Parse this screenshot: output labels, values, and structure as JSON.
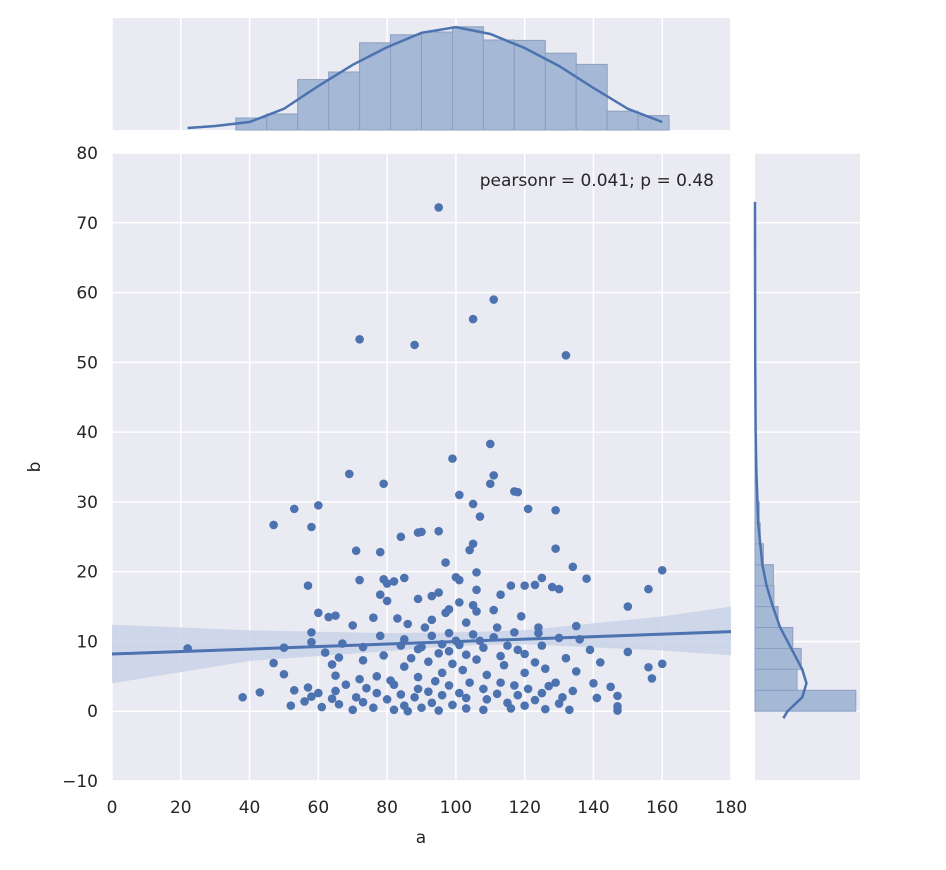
{
  "chart_data": {
    "type": "scatter",
    "subtype": "jointplot",
    "xlabel": "a",
    "ylabel": "b",
    "xlim": [
      0,
      180
    ],
    "ylim": [
      -10,
      80
    ],
    "xticks": [
      0,
      20,
      40,
      60,
      80,
      100,
      120,
      140,
      160,
      180
    ],
    "yticks": [
      -10,
      0,
      10,
      20,
      30,
      40,
      50,
      60,
      70,
      80
    ],
    "annotation": "pearsonr = 0.041; p = 0.48",
    "grid": true,
    "colors": {
      "background": "#eaeaf2",
      "grid": "#ffffff",
      "points": "#4c72b0",
      "hist_fill": "#a5b8d6",
      "hist_edge": "#8c9fc0",
      "ci_band": "#c9d4e8"
    },
    "points": [
      [
        95,
        72.2
      ],
      [
        111,
        59
      ],
      [
        105,
        56.2
      ],
      [
        72,
        53.3
      ],
      [
        88,
        52.5
      ],
      [
        132,
        51
      ],
      [
        110,
        38.3
      ],
      [
        99,
        36.2
      ],
      [
        69,
        34
      ],
      [
        111,
        33.8
      ],
      [
        110,
        32.6
      ],
      [
        79,
        32.6
      ],
      [
        117,
        31.5
      ],
      [
        118,
        31.4
      ],
      [
        101,
        31
      ],
      [
        105,
        29.7
      ],
      [
        60,
        29.5
      ],
      [
        53,
        29
      ],
      [
        121,
        29
      ],
      [
        129,
        28.8
      ],
      [
        107,
        27.9
      ],
      [
        47,
        26.7
      ],
      [
        58,
        26.4
      ],
      [
        95,
        25.8
      ],
      [
        90,
        25.7
      ],
      [
        89,
        25.6
      ],
      [
        84,
        25
      ],
      [
        105,
        24
      ],
      [
        104,
        23.1
      ],
      [
        71,
        23
      ],
      [
        78,
        22.8
      ],
      [
        129,
        23.3
      ],
      [
        97,
        21.3
      ],
      [
        134,
        20.7
      ],
      [
        160,
        20.2
      ],
      [
        106,
        19.9
      ],
      [
        100,
        19.2
      ],
      [
        85,
        19.1
      ],
      [
        125,
        19.1
      ],
      [
        138,
        19
      ],
      [
        79,
        18.9
      ],
      [
        72,
        18.8
      ],
      [
        101,
        18.8
      ],
      [
        82,
        18.6
      ],
      [
        80,
        18.3
      ],
      [
        57,
        18
      ],
      [
        116,
        18
      ],
      [
        120,
        18
      ],
      [
        123,
        18.1
      ],
      [
        128,
        17.8
      ],
      [
        130,
        17.5
      ],
      [
        156,
        17.5
      ],
      [
        106,
        17.4
      ],
      [
        95,
        17
      ],
      [
        113,
        16.7
      ],
      [
        78,
        16.7
      ],
      [
        93,
        16.5
      ],
      [
        89,
        16.1
      ],
      [
        80,
        15.8
      ],
      [
        101,
        15.6
      ],
      [
        105,
        15.2
      ],
      [
        150,
        15
      ],
      [
        98,
        14.6
      ],
      [
        111,
        14.5
      ],
      [
        106,
        14.3
      ],
      [
        97,
        14.1
      ],
      [
        60,
        14.1
      ],
      [
        65,
        13.7
      ],
      [
        119,
        13.6
      ],
      [
        76,
        13.4
      ],
      [
        63,
        13.5
      ],
      [
        83,
        13.3
      ],
      [
        93,
        13.1
      ],
      [
        103,
        12.7
      ],
      [
        86,
        12.5
      ],
      [
        70,
        12.3
      ],
      [
        135,
        12.2
      ],
      [
        91,
        12
      ],
      [
        124,
        12
      ],
      [
        112,
        12
      ],
      [
        58,
        11.3
      ],
      [
        98,
        11.2
      ],
      [
        105,
        11
      ],
      [
        117,
        11.3
      ],
      [
        124,
        11.2
      ],
      [
        78,
        10.8
      ],
      [
        93,
        10.8
      ],
      [
        111,
        10.6
      ],
      [
        130,
        10.5
      ],
      [
        136,
        10.3
      ],
      [
        85,
        10.3
      ],
      [
        100,
        10.1
      ],
      [
        107,
        10.1
      ],
      [
        58,
        9.9
      ],
      [
        67,
        9.7
      ],
      [
        96,
        9.6
      ],
      [
        101,
        9.5
      ],
      [
        115,
        9.4
      ],
      [
        125,
        9.4
      ],
      [
        90,
        9.2
      ],
      [
        73,
        9.2
      ],
      [
        108,
        9.1
      ],
      [
        50,
        9.1
      ],
      [
        22,
        9
      ],
      [
        84,
        9.4
      ],
      [
        89,
        8.9
      ],
      [
        98,
        8.6
      ],
      [
        118,
        8.8
      ],
      [
        139,
        8.8
      ],
      [
        150,
        8.5
      ],
      [
        62,
        8.4
      ],
      [
        95,
        8.3
      ],
      [
        120,
        8.2
      ],
      [
        79,
        8
      ],
      [
        103,
        8.1
      ],
      [
        113,
        7.9
      ],
      [
        66,
        7.7
      ],
      [
        87,
        7.6
      ],
      [
        132,
        7.6
      ],
      [
        106,
        7.4
      ],
      [
        73,
        7.3
      ],
      [
        92,
        7.1
      ],
      [
        123,
        7
      ],
      [
        142,
        7
      ],
      [
        47,
        6.9
      ],
      [
        64,
        6.7
      ],
      [
        99,
        6.8
      ],
      [
        114,
        6.6
      ],
      [
        160,
        6.8
      ],
      [
        156,
        6.3
      ],
      [
        85,
        6.4
      ],
      [
        126,
        6.1
      ],
      [
        102,
        5.9
      ],
      [
        135,
        5.7
      ],
      [
        96,
        5.5
      ],
      [
        120,
        5.5
      ],
      [
        50,
        5.3
      ],
      [
        65,
        5.1
      ],
      [
        77,
        5
      ],
      [
        109,
        5.2
      ],
      [
        89,
        4.9
      ],
      [
        157,
        4.7
      ],
      [
        72,
        4.6
      ],
      [
        81,
        4.4
      ],
      [
        94,
        4.3
      ],
      [
        104,
        4.1
      ],
      [
        113,
        4.1
      ],
      [
        129,
        4.1
      ],
      [
        140,
        4
      ],
      [
        68,
        3.8
      ],
      [
        82,
        3.8
      ],
      [
        98,
        3.7
      ],
      [
        117,
        3.7
      ],
      [
        127,
        3.6
      ],
      [
        145,
        3.5
      ],
      [
        57,
        3.4
      ],
      [
        74,
        3.3
      ],
      [
        89,
        3.2
      ],
      [
        108,
        3.2
      ],
      [
        121,
        3.2
      ],
      [
        53,
        3
      ],
      [
        65,
        2.9
      ],
      [
        92,
        2.8
      ],
      [
        134,
        2.9
      ],
      [
        43,
        2.7
      ],
      [
        60,
        2.6
      ],
      [
        77,
        2.6
      ],
      [
        101,
        2.6
      ],
      [
        112,
        2.5
      ],
      [
        125,
        2.6
      ],
      [
        84,
        2.4
      ],
      [
        96,
        2.3
      ],
      [
        118,
        2.3
      ],
      [
        147,
        2.2
      ],
      [
        38,
        2
      ],
      [
        58,
        2.1
      ],
      [
        71,
        2
      ],
      [
        88,
        2
      ],
      [
        103,
        1.9
      ],
      [
        131,
        2
      ],
      [
        141,
        1.9
      ],
      [
        64,
        1.8
      ],
      [
        80,
        1.7
      ],
      [
        109,
        1.7
      ],
      [
        123,
        1.6
      ],
      [
        56,
        1.4
      ],
      [
        73,
        1.3
      ],
      [
        93,
        1.2
      ],
      [
        115,
        1.2
      ],
      [
        130,
        1.1
      ],
      [
        66,
        1
      ],
      [
        52,
        0.8
      ],
      [
        85,
        0.8
      ],
      [
        99,
        0.9
      ],
      [
        120,
        0.8
      ],
      [
        147,
        0.7
      ],
      [
        61,
        0.6
      ],
      [
        76,
        0.5
      ],
      [
        90,
        0.5
      ],
      [
        103,
        0.4
      ],
      [
        116,
        0.4
      ],
      [
        126,
        0.3
      ],
      [
        70,
        0.2
      ],
      [
        82,
        0.2
      ],
      [
        95,
        0.1
      ],
      [
        108,
        0.2
      ],
      [
        133,
        0.2
      ],
      [
        147,
        0.1
      ],
      [
        86,
        0.0
      ]
    ],
    "regression": {
      "x": [
        0,
        180
      ],
      "y": [
        8.2,
        11.4
      ]
    },
    "ci_band": {
      "x": [
        0,
        40,
        80,
        100,
        120,
        160,
        180
      ],
      "lower": [
        4,
        7.2,
        8.6,
        9.4,
        9.6,
        8.7,
        8
      ],
      "upper": [
        12.4,
        11.6,
        11.2,
        11.3,
        11.6,
        13.6,
        15
      ]
    },
    "marginal_x": {
      "bins": [
        [
          36,
          45
        ],
        [
          45,
          54
        ],
        [
          54,
          63
        ],
        [
          63,
          72
        ],
        [
          72,
          81
        ],
        [
          81,
          90
        ],
        [
          90,
          99
        ],
        [
          99,
          108
        ],
        [
          108,
          117
        ],
        [
          117,
          126
        ],
        [
          126,
          135
        ],
        [
          135,
          144
        ],
        [
          144,
          153
        ],
        [
          153,
          162
        ]
      ],
      "density": [
        0.003,
        0.004,
        0.0126,
        0.0145,
        0.0218,
        0.0238,
        0.0245,
        0.0258,
        0.0225,
        0.0224,
        0.0192,
        0.0164,
        0.0047,
        0.0036
      ],
      "kde_x": [
        22,
        30,
        40,
        50,
        60,
        70,
        80,
        90,
        100,
        110,
        120,
        130,
        140,
        150,
        160
      ],
      "kde_y": [
        0.0005,
        0.001,
        0.002,
        0.0053,
        0.011,
        0.0163,
        0.0207,
        0.0243,
        0.0257,
        0.024,
        0.0205,
        0.016,
        0.0105,
        0.0053,
        0.002
      ],
      "ymax": 0.028
    },
    "marginal_y": {
      "bins": [
        [
          0,
          3
        ],
        [
          3,
          6
        ],
        [
          6,
          9
        ],
        [
          9,
          12
        ],
        [
          12,
          15
        ],
        [
          15,
          18
        ],
        [
          18,
          21
        ],
        [
          21,
          24
        ],
        [
          24,
          27
        ],
        [
          27,
          30
        ],
        [
          30,
          33
        ],
        [
          33,
          36
        ],
        [
          36,
          39
        ]
      ],
      "density": [
        0.096,
        0.04,
        0.044,
        0.036,
        0.022,
        0.018,
        0.0175,
        0.008,
        0.005,
        0.004,
        0.002,
        0.0015,
        0.001
      ],
      "kde_y": [
        -1,
        0,
        2,
        4,
        6,
        8,
        10,
        12,
        15,
        18,
        21,
        24,
        27,
        30,
        35,
        40,
        50,
        60,
        73
      ],
      "kde_x": [
        0.027,
        0.031,
        0.045,
        0.049,
        0.045,
        0.038,
        0.031,
        0.024,
        0.017,
        0.011,
        0.007,
        0.005,
        0.003,
        0.0023,
        0.0012,
        0.0006,
        0.0002,
        0.0001,
        0.0
      ],
      "xmax": 0.1
    }
  }
}
